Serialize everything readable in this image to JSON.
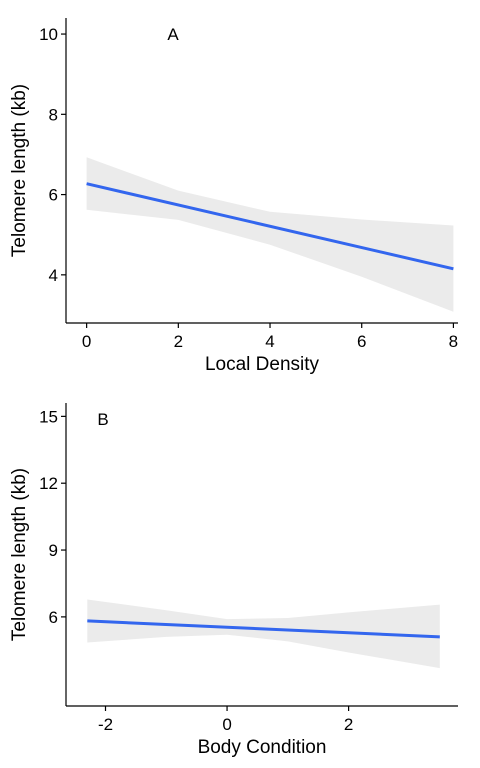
{
  "chart_data": [
    {
      "type": "line",
      "panel_label": "A",
      "xlabel": "Local Density",
      "ylabel": "Telomere length (kb)",
      "xlim": [
        -0.45,
        8.1
      ],
      "ylim": [
        2.8,
        10.4
      ],
      "xticks": [
        0,
        2,
        4,
        6,
        8
      ],
      "xtick_labels": [
        "0",
        "2",
        "4",
        "6",
        "8"
      ],
      "yticks": [
        4,
        6,
        8,
        10
      ],
      "ytick_labels": [
        "4",
        "6",
        "8",
        "10"
      ],
      "grid": false,
      "series": [
        {
          "x": [
            0,
            8
          ],
          "y": [
            6.27,
            4.15
          ],
          "ci_lower": [
            [
              0,
              5.62
            ],
            [
              2,
              5.37
            ],
            [
              4,
              4.75
            ],
            [
              6,
              3.95
            ],
            [
              8,
              3.08
            ]
          ],
          "ci_upper": [
            [
              0,
              6.93
            ],
            [
              2,
              6.1
            ],
            [
              4,
              5.57
            ],
            [
              6,
              5.38
            ],
            [
              8,
              5.23
            ]
          ],
          "color": "#3366ee",
          "band_color": "#ebebeb"
        }
      ]
    },
    {
      "type": "line",
      "panel_label": "B",
      "xlabel": "Body Condition",
      "ylabel": "Telomere length (kb)",
      "xlim": [
        -2.65,
        3.8
      ],
      "ylim": [
        2.0,
        15.6
      ],
      "xticks": [
        -2,
        0,
        2
      ],
      "xtick_labels": [
        "-2",
        "0",
        "2"
      ],
      "yticks": [
        6,
        9,
        12,
        15
      ],
      "ytick_labels": [
        "6",
        "9",
        "12",
        "15"
      ],
      "grid": false,
      "series": [
        {
          "x": [
            -2.3,
            3.5
          ],
          "y": [
            5.82,
            5.1
          ],
          "ci_lower": [
            [
              -2.3,
              4.85
            ],
            [
              -1,
              5.1
            ],
            [
              0,
              5.2
            ],
            [
              1,
              4.9
            ],
            [
              2,
              4.4
            ],
            [
              3.5,
              3.7
            ]
          ],
          "ci_upper": [
            [
              -2.3,
              6.78
            ],
            [
              -1,
              6.3
            ],
            [
              0,
              5.9
            ],
            [
              1,
              5.95
            ],
            [
              2,
              6.2
            ],
            [
              3.5,
              6.55
            ]
          ],
          "color": "#3366ee",
          "band_color": "#ebebeb"
        }
      ]
    }
  ]
}
